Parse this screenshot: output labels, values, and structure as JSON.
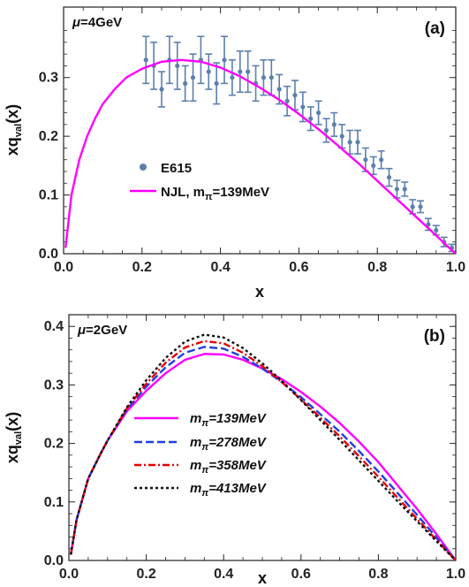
{
  "chart_data": [
    {
      "type": "line",
      "panel_label": "(a)",
      "annotation": {
        "symbol": "μ",
        "text": "=4GeV"
      },
      "xlabel": "x",
      "ylabel": {
        "main": "xq",
        "sub": "val",
        "tail": "(x)"
      },
      "xlim": [
        0,
        1
      ],
      "ylim": [
        0,
        0.42
      ],
      "x_ticks": [
        "0.0",
        "0.2",
        "0.4",
        "0.6",
        "0.8",
        "1.0"
      ],
      "y_ticks": [
        "0.0",
        "0.1",
        "0.2",
        "0.3"
      ],
      "legend_position": "lower-left",
      "colors": {
        "data": "#5c7fad",
        "model": "#ff00ff"
      },
      "series": [
        {
          "name": "E615",
          "kind": "scatter-errorbar",
          "x": [
            0.21,
            0.23,
            0.25,
            0.27,
            0.29,
            0.31,
            0.33,
            0.35,
            0.37,
            0.39,
            0.41,
            0.43,
            0.45,
            0.47,
            0.49,
            0.51,
            0.53,
            0.55,
            0.57,
            0.59,
            0.61,
            0.63,
            0.65,
            0.67,
            0.69,
            0.71,
            0.73,
            0.75,
            0.77,
            0.79,
            0.81,
            0.83,
            0.85,
            0.87,
            0.89,
            0.91,
            0.93,
            0.95,
            0.97,
            0.99
          ],
          "y": [
            0.33,
            0.32,
            0.28,
            0.33,
            0.32,
            0.29,
            0.3,
            0.33,
            0.31,
            0.29,
            0.33,
            0.3,
            0.31,
            0.31,
            0.29,
            0.3,
            0.3,
            0.28,
            0.26,
            0.27,
            0.25,
            0.23,
            0.24,
            0.21,
            0.22,
            0.2,
            0.19,
            0.19,
            0.16,
            0.15,
            0.16,
            0.13,
            0.11,
            0.11,
            0.08,
            0.08,
            0.05,
            0.04,
            0.02,
            0.01
          ],
          "err": [
            0.04,
            0.04,
            0.03,
            0.04,
            0.04,
            0.03,
            0.04,
            0.04,
            0.03,
            0.035,
            0.04,
            0.03,
            0.035,
            0.035,
            0.03,
            0.03,
            0.03,
            0.025,
            0.025,
            0.025,
            0.025,
            0.02,
            0.02,
            0.02,
            0.02,
            0.02,
            0.02,
            0.02,
            0.02,
            0.015,
            0.015,
            0.015,
            0.015,
            0.012,
            0.012,
            0.01,
            0.01,
            0.008,
            0.008,
            0.006
          ]
        },
        {
          "name": "NJL, m",
          "name_sub": "π",
          "name_tail": "=139MeV",
          "kind": "line",
          "dash": "solid",
          "color": "#ff00ff",
          "x": [
            0.005,
            0.02,
            0.04,
            0.06,
            0.08,
            0.1,
            0.13,
            0.16,
            0.2,
            0.25,
            0.3,
            0.35,
            0.4,
            0.45,
            0.5,
            0.55,
            0.6,
            0.65,
            0.7,
            0.75,
            0.8,
            0.85,
            0.9,
            0.95,
            0.98,
            1.0
          ],
          "y": [
            0.01,
            0.1,
            0.16,
            0.2,
            0.23,
            0.255,
            0.28,
            0.3,
            0.315,
            0.327,
            0.33,
            0.327,
            0.317,
            0.302,
            0.283,
            0.262,
            0.238,
            0.212,
            0.184,
            0.155,
            0.124,
            0.093,
            0.062,
            0.031,
            0.012,
            0.0
          ]
        }
      ]
    },
    {
      "type": "line",
      "panel_label": "(b)",
      "annotation": {
        "symbol": "μ",
        "text": "=2GeV"
      },
      "xlabel": "x",
      "ylabel": {
        "main": "xq",
        "sub": "val",
        "tail": "(x)"
      },
      "xlim": [
        0,
        1
      ],
      "ylim": [
        0,
        0.42
      ],
      "x_ticks": [
        "0.0",
        "0.2",
        "0.4",
        "0.6",
        "0.8",
        "1.0"
      ],
      "y_ticks": [
        "0.0",
        "0.1",
        "0.2",
        "0.3",
        "0.4"
      ],
      "legend_position": "center-left",
      "series": [
        {
          "name": "m",
          "name_sub": "π",
          "name_tail": "=139MeV",
          "color": "#ff00ff",
          "dash": "solid",
          "x": [
            0.005,
            0.02,
            0.05,
            0.08,
            0.1,
            0.15,
            0.2,
            0.25,
            0.3,
            0.35,
            0.4,
            0.45,
            0.5,
            0.55,
            0.6,
            0.65,
            0.7,
            0.75,
            0.8,
            0.85,
            0.9,
            0.95,
            1.0
          ],
          "y": [
            0.01,
            0.07,
            0.14,
            0.18,
            0.205,
            0.255,
            0.29,
            0.32,
            0.343,
            0.353,
            0.352,
            0.343,
            0.328,
            0.31,
            0.288,
            0.263,
            0.235,
            0.203,
            0.168,
            0.128,
            0.088,
            0.045,
            0.0
          ]
        },
        {
          "name": "m",
          "name_sub": "π",
          "name_tail": "=278MeV",
          "color": "#1f3fe0",
          "dash": "dashed",
          "x": [
            0.005,
            0.02,
            0.05,
            0.08,
            0.1,
            0.15,
            0.2,
            0.25,
            0.3,
            0.35,
            0.4,
            0.45,
            0.5,
            0.55,
            0.6,
            0.65,
            0.7,
            0.75,
            0.8,
            0.85,
            0.9,
            0.95,
            1.0
          ],
          "y": [
            0.01,
            0.07,
            0.14,
            0.18,
            0.205,
            0.258,
            0.297,
            0.33,
            0.355,
            0.365,
            0.362,
            0.348,
            0.328,
            0.305,
            0.279,
            0.25,
            0.22,
            0.187,
            0.152,
            0.115,
            0.078,
            0.039,
            0.0
          ]
        },
        {
          "name": "m",
          "name_sub": "π",
          "name_tail": "=358MeV",
          "color": "#e60000",
          "dash": "dashdot",
          "x": [
            0.005,
            0.02,
            0.05,
            0.08,
            0.1,
            0.15,
            0.2,
            0.25,
            0.3,
            0.35,
            0.4,
            0.45,
            0.5,
            0.55,
            0.6,
            0.65,
            0.7,
            0.75,
            0.8,
            0.85,
            0.9,
            0.95,
            1.0
          ],
          "y": [
            0.01,
            0.07,
            0.14,
            0.18,
            0.205,
            0.26,
            0.302,
            0.338,
            0.364,
            0.375,
            0.371,
            0.355,
            0.332,
            0.305,
            0.275,
            0.244,
            0.212,
            0.178,
            0.143,
            0.107,
            0.071,
            0.035,
            0.0
          ]
        },
        {
          "name": "m",
          "name_sub": "π",
          "name_tail": "=413MeV",
          "color": "#111111",
          "dash": "dotted",
          "x": [
            0.005,
            0.02,
            0.05,
            0.08,
            0.1,
            0.15,
            0.2,
            0.25,
            0.3,
            0.35,
            0.4,
            0.45,
            0.5,
            0.55,
            0.6,
            0.65,
            0.7,
            0.75,
            0.8,
            0.85,
            0.9,
            0.95,
            1.0
          ],
          "y": [
            0.01,
            0.07,
            0.14,
            0.18,
            0.205,
            0.262,
            0.308,
            0.346,
            0.374,
            0.386,
            0.381,
            0.363,
            0.337,
            0.307,
            0.274,
            0.24,
            0.206,
            0.171,
            0.136,
            0.101,
            0.067,
            0.033,
            0.0
          ]
        }
      ]
    }
  ]
}
